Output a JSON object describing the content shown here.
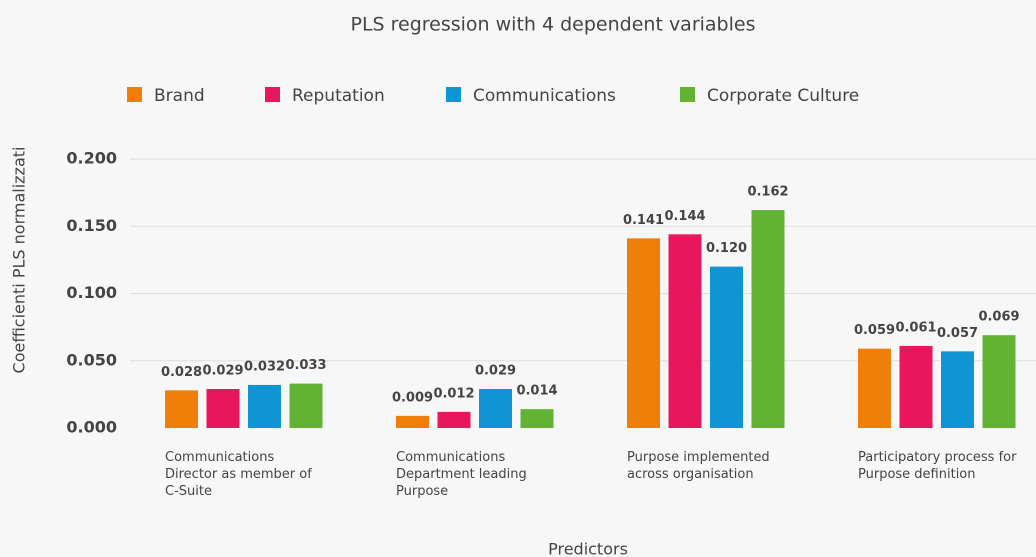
{
  "chart_data": {
    "type": "bar",
    "title": "PLS regression with 4 dependent variables",
    "x_label": "Predictors",
    "y_label": "Coefficienti PLS normalizzati",
    "categories": [
      "Communications Director as member of C-Suite",
      "Communications Department leading Purpose",
      "Purpose implemented across organisation",
      "Participatory process for Purpose definition"
    ],
    "series": [
      {
        "name": "Brand",
        "color": "#f07f09",
        "values": [
          0.028,
          0.009,
          0.141,
          0.059
        ],
        "value_labels": [
          "0.028",
          "0.009",
          "0.141",
          "0.059"
        ]
      },
      {
        "name": "Reputation",
        "color": "#e8175d",
        "values": [
          0.029,
          0.012,
          0.144,
          0.061
        ],
        "value_labels": [
          "0.029",
          "0.012",
          "0.144",
          "0.061"
        ]
      },
      {
        "name": "Communications",
        "color": "#0f95d4",
        "values": [
          0.032,
          0.029,
          0.12,
          0.057
        ],
        "value_labels": [
          "0.032",
          "0.029",
          "0.120",
          "0.057"
        ]
      },
      {
        "name": "Corporate Culture",
        "color": "#62b234",
        "values": [
          0.033,
          0.014,
          0.162,
          0.069
        ],
        "value_labels": [
          "0.033",
          "0.014",
          "0.162",
          "0.069"
        ]
      }
    ],
    "ylim": [
      0,
      0.2
    ],
    "yticks": [
      {
        "value": 0,
        "label": "0.000"
      },
      {
        "value": 0.05,
        "label": "0.050"
      },
      {
        "value": 0.1,
        "label": "0.100"
      },
      {
        "value": 0.15,
        "label": "0.150"
      },
      {
        "value": 0.2,
        "label": "0.200"
      }
    ],
    "grid": true,
    "legend": "top"
  }
}
